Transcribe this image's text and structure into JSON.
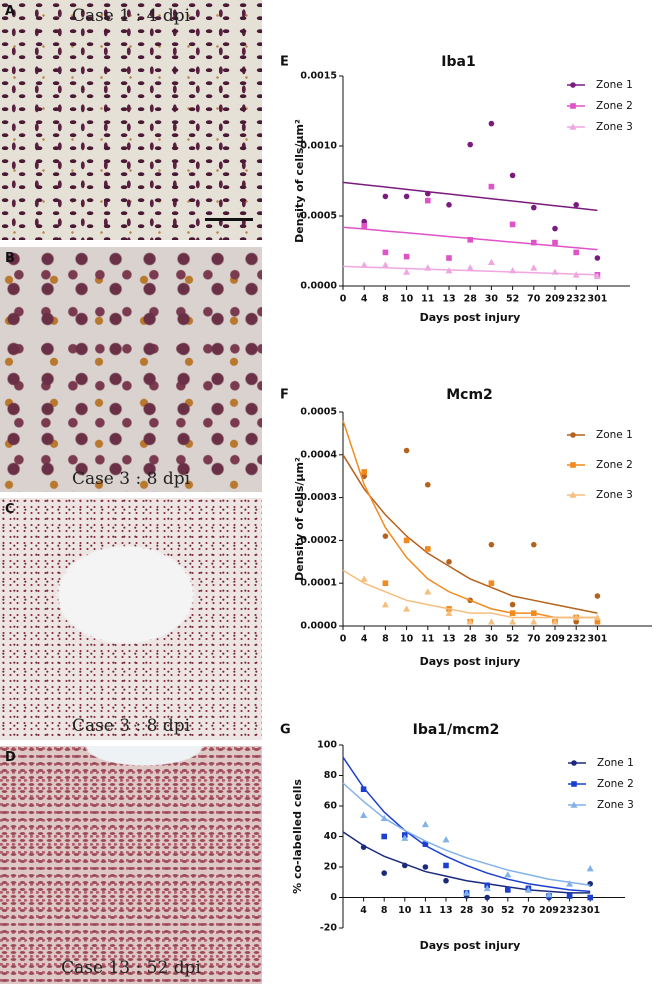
{
  "image_panels": [
    {
      "letter": "A",
      "caption": "Case 1 : 4 dpi"
    },
    {
      "letter": "B",
      "caption": "Case 3 : 8 dpi"
    },
    {
      "letter": "C",
      "caption": "Case 3 : 8 dpi"
    },
    {
      "letter": "D",
      "caption": "Case 13 : 52 dpi"
    }
  ],
  "chart_data": [
    {
      "type": "scatter",
      "panel": "E",
      "title": "Iba1",
      "x_label": "Days post injury",
      "y_label": "Density of cells/μm²",
      "categories": [
        "0",
        "4",
        "8",
        "10",
        "11",
        "13",
        "28",
        "30",
        "52",
        "70",
        "209",
        "232",
        "301"
      ],
      "ylim": [
        0,
        0.0015
      ],
      "yticks": [
        {
          "value": 0,
          "label": "0.0000"
        },
        {
          "value": 0.0005,
          "label": "0.0005"
        },
        {
          "value": 0.001,
          "label": "0.0010"
        },
        {
          "value": 0.0015,
          "label": "0.0015"
        }
      ],
      "legend": "upper right",
      "series": [
        {
          "name": "Zone 1",
          "color": "#7a1b7e",
          "marker": "circle",
          "values": [
            null,
            0.00046,
            0.00064,
            0.00064,
            0.00066,
            0.00058,
            0.00101,
            0.00116,
            0.00079,
            0.00056,
            0.00041,
            0.00058,
            0.0002
          ],
          "trend": [
            0.00074,
            0.000723,
            0.000707,
            0.00069,
            0.000673,
            0.000657,
            0.00064,
            0.000623,
            0.000607,
            0.00059,
            0.000573,
            0.000557,
            0.00054
          ]
        },
        {
          "name": "Zone 2",
          "color": "#e052c8",
          "marker": "square",
          "values": [
            null,
            0.00043,
            0.00024,
            0.00021,
            0.00061,
            0.0002,
            0.00033,
            0.00071,
            0.00044,
            0.00031,
            0.00031,
            0.00024,
            8e-05
          ],
          "trend": [
            0.00042,
            0.000407,
            0.000393,
            0.00038,
            0.000367,
            0.000353,
            0.00034,
            0.000327,
            0.000313,
            0.0003,
            0.000287,
            0.000273,
            0.00026
          ]
        },
        {
          "name": "Zone 3",
          "color": "#f0a6e0",
          "marker": "triangle",
          "values": [
            null,
            0.00015,
            0.00015,
            0.0001,
            0.00013,
            0.00011,
            0.00013,
            0.00017,
            0.00011,
            0.00013,
            0.0001,
            8e-05,
            7e-05
          ],
          "trend": [
            0.00014,
            0.000135,
            0.00013,
            0.000125,
            0.00012,
            0.000115,
            0.00011,
            0.000105,
            0.0001,
            9.5e-05,
            9e-05,
            8.5e-05,
            8e-05
          ]
        }
      ]
    },
    {
      "type": "scatter",
      "panel": "F",
      "title": "Mcm2",
      "x_label": "Days post injury",
      "y_label": "Density of cells/μm²",
      "categories": [
        "0",
        "4",
        "8",
        "10",
        "11",
        "13",
        "28",
        "30",
        "52",
        "70",
        "209",
        "232",
        "301"
      ],
      "ylim": [
        0,
        0.0005
      ],
      "yticks": [
        {
          "value": 0,
          "label": "0.0000"
        },
        {
          "value": 0.0001,
          "label": "0.0001"
        },
        {
          "value": 0.0002,
          "label": "0.0002"
        },
        {
          "value": 0.0003,
          "label": "0.0003"
        },
        {
          "value": 0.0004,
          "label": "0.0004"
        },
        {
          "value": 0.0005,
          "label": "0.0005"
        }
      ],
      "legend": "upper right",
      "series": [
        {
          "name": "Zone 1",
          "color": "#b5621c",
          "marker": "circle",
          "values": [
            null,
            0.00035,
            0.00021,
            0.00041,
            0.00033,
            0.00015,
            6e-05,
            0.00019,
            5e-05,
            0.00019,
            1e-05,
            1e-05,
            7e-05
          ],
          "trend": [
            0.0004,
            0.00032,
            0.00026,
            0.00021,
            0.00017,
            0.00014,
            0.00011,
            9e-05,
            7e-05,
            6e-05,
            5e-05,
            4e-05,
            3e-05
          ]
        },
        {
          "name": "Zone 2",
          "color": "#f28a1e",
          "marker": "square",
          "values": [
            null,
            0.00036,
            0.0001,
            0.0002,
            0.00018,
            4e-05,
            1e-05,
            0.0001,
            3e-05,
            3e-05,
            1e-05,
            2e-05,
            1e-05
          ],
          "trend": [
            0.00048,
            0.00033,
            0.00023,
            0.00016,
            0.00011,
            8e-05,
            6e-05,
            4e-05,
            3e-05,
            3e-05,
            2e-05,
            2e-05,
            2e-05
          ]
        },
        {
          "name": "Zone 3",
          "color": "#f6be7e",
          "marker": "triangle",
          "values": [
            null,
            0.00011,
            5e-05,
            4e-05,
            8e-05,
            3e-05,
            1e-05,
            1e-05,
            1e-05,
            1e-05,
            1e-05,
            2e-05,
            2e-05
          ],
          "trend": [
            0.00013,
            0.0001,
            8e-05,
            6e-05,
            5e-05,
            4e-05,
            3e-05,
            3e-05,
            2e-05,
            2e-05,
            2e-05,
            2e-05,
            2e-05
          ]
        }
      ]
    },
    {
      "type": "scatter",
      "panel": "G",
      "title": "Iba1/mcm2",
      "x_label": "Days post injury",
      "y_label": "% co-labelled cells",
      "categories": [
        null,
        "4",
        "8",
        "10",
        "11",
        "13",
        "28",
        "30",
        "52",
        "70",
        "209",
        "232",
        "301"
      ],
      "ylim": [
        -20,
        100
      ],
      "yticks": [
        -20,
        0,
        20,
        40,
        60,
        80,
        100
      ],
      "legend": "upper right",
      "series": [
        {
          "name": "Zone 1",
          "color": "#1b2a7c",
          "marker": "circle",
          "values": [
            null,
            33,
            16,
            21,
            20,
            11,
            1,
            0,
            5,
            5,
            0,
            1,
            9
          ],
          "trend": [
            43,
            34,
            27,
            22,
            17,
            14,
            11,
            9,
            7,
            5,
            4,
            3,
            3
          ]
        },
        {
          "name": "Zone 2",
          "color": "#1d3fd0",
          "marker": "square",
          "values": [
            null,
            71,
            40,
            41,
            35,
            21,
            3,
            8,
            5,
            6,
            1,
            1,
            0
          ],
          "trend": [
            92,
            72,
            56,
            44,
            34,
            27,
            21,
            16,
            12,
            9,
            7,
            5,
            4
          ]
        },
        {
          "name": "Zone 3",
          "color": "#82b2ea",
          "marker": "triangle",
          "values": [
            null,
            54,
            52,
            39,
            48,
            38,
            3,
            6,
            15,
            5,
            2,
            9,
            19
          ],
          "trend": [
            75,
            63,
            52,
            44,
            37,
            31,
            26,
            22,
            18,
            15,
            12,
            10,
            8
          ]
        }
      ]
    }
  ]
}
